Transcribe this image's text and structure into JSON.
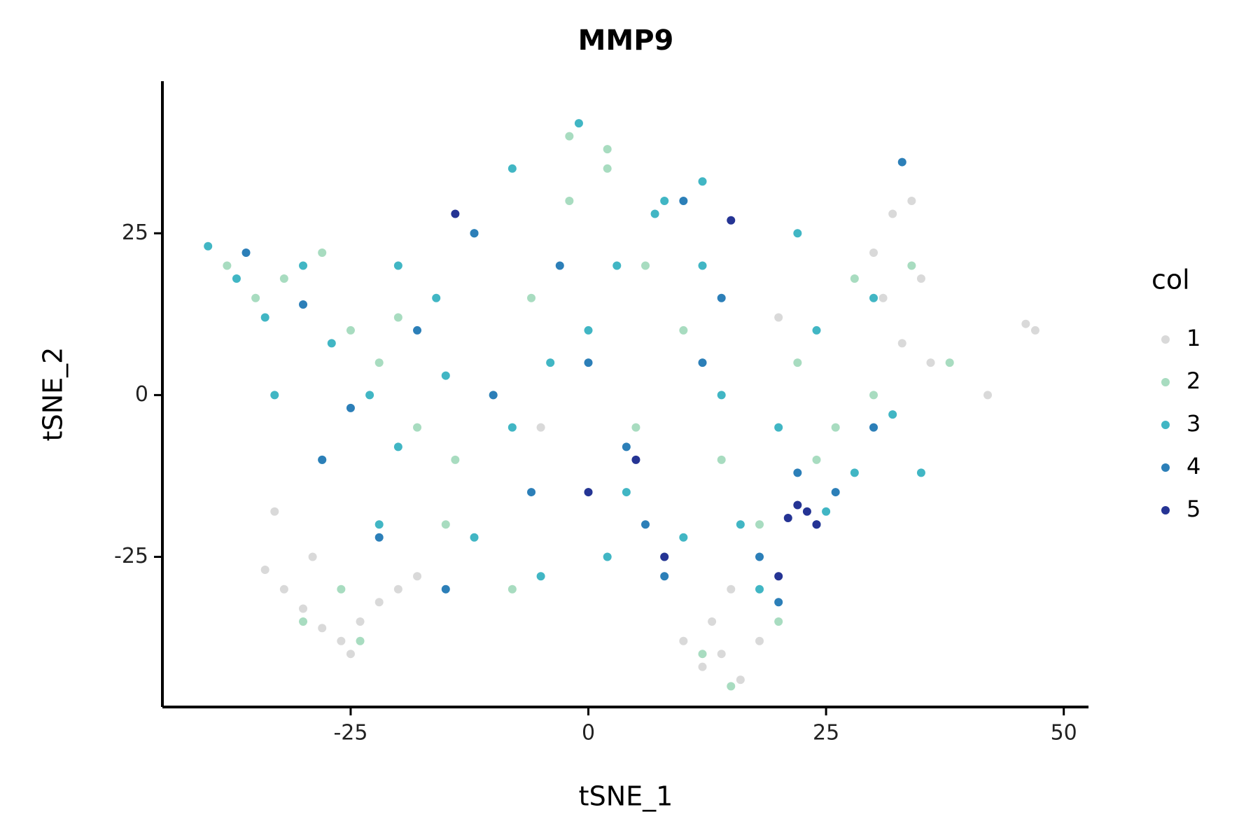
{
  "chart_data": {
    "type": "scatter",
    "title": "MMP9",
    "x_label": "tSNE_1",
    "y_label": "tSNE_2",
    "legend_title": "col",
    "legend_position": "right",
    "grid": false,
    "xlim": [
      -44.8,
      52.6
    ],
    "ylim": [
      -48.2,
      48.5
    ],
    "xticks": [
      -25,
      0,
      25,
      50
    ],
    "yticks": [
      -25,
      0,
      25
    ],
    "series": [
      {
        "name": "1",
        "color": "#d9d9d9",
        "x": [
          -34,
          -32,
          -30,
          -28,
          -26,
          -24,
          -22,
          -20,
          -18,
          -25,
          -29,
          -33,
          10,
          12,
          14,
          16,
          18,
          13,
          15,
          30,
          32,
          34,
          35,
          33,
          36,
          31,
          46,
          47,
          42,
          -5,
          5,
          20
        ],
        "values": [
          -27,
          -30,
          -33,
          -36,
          -38,
          -35,
          -32,
          -30,
          -28,
          -40,
          -25,
          -18,
          -38,
          -42,
          -40,
          -44,
          -38,
          -35,
          -30,
          22,
          28,
          30,
          18,
          8,
          5,
          15,
          11,
          10,
          0,
          -5,
          -10,
          12
        ]
      },
      {
        "name": "2",
        "color": "#a8dcc0",
        "x": [
          -38,
          -35,
          -32,
          -28,
          -25,
          -22,
          -18,
          -14,
          -10,
          -6,
          -2,
          2,
          6,
          10,
          14,
          18,
          22,
          26,
          30,
          -2,
          2,
          -30,
          -24,
          -26,
          12,
          15,
          -15,
          -8,
          5,
          20,
          28,
          34,
          -20,
          0,
          8,
          38,
          24
        ],
        "values": [
          20,
          15,
          18,
          22,
          10,
          5,
          -5,
          -10,
          0,
          15,
          30,
          38,
          20,
          10,
          -10,
          -20,
          5,
          -5,
          0,
          40,
          35,
          -35,
          -38,
          -30,
          -40,
          -45,
          -20,
          -30,
          -5,
          -35,
          18,
          20,
          12,
          -15,
          -25,
          5,
          -10
        ]
      },
      {
        "name": "3",
        "color": "#41b6c4",
        "x": [
          -40,
          -37,
          -34,
          -30,
          -27,
          -23,
          -20,
          -16,
          -12,
          -8,
          -4,
          0,
          4,
          8,
          12,
          16,
          20,
          24,
          28,
          32,
          -33,
          -28,
          -20,
          -12,
          -5,
          2,
          10,
          18,
          25,
          30,
          -1,
          7,
          12,
          -22,
          -15,
          -8,
          3,
          14,
          22,
          35
        ],
        "values": [
          23,
          18,
          12,
          20,
          8,
          0,
          -8,
          15,
          25,
          -5,
          5,
          10,
          -15,
          30,
          20,
          -20,
          -5,
          10,
          -12,
          -3,
          0,
          -10,
          20,
          -22,
          -28,
          -25,
          -22,
          -30,
          -18,
          15,
          42,
          28,
          33,
          -20,
          3,
          35,
          20,
          0,
          25,
          -12
        ]
      },
      {
        "name": "4",
        "color": "#2c7fb8",
        "x": [
          -36,
          -30,
          -25,
          -18,
          -12,
          -6,
          0,
          6,
          10,
          14,
          18,
          22,
          26,
          30,
          -22,
          -15,
          -3,
          4,
          12,
          20,
          24,
          -10,
          8,
          33,
          -28
        ],
        "values": [
          22,
          14,
          -2,
          10,
          25,
          -15,
          5,
          -20,
          30,
          15,
          -25,
          -12,
          -15,
          -5,
          -22,
          -30,
          20,
          -8,
          5,
          -32,
          -20,
          0,
          -28,
          36,
          -10
        ]
      },
      {
        "name": "5",
        "color": "#253494",
        "x": [
          23,
          24,
          22,
          21,
          15,
          8,
          -14,
          5,
          20,
          0
        ],
        "values": [
          -18,
          -20,
          -17,
          -19,
          27,
          -25,
          28,
          -10,
          -28,
          -15
        ]
      }
    ]
  }
}
